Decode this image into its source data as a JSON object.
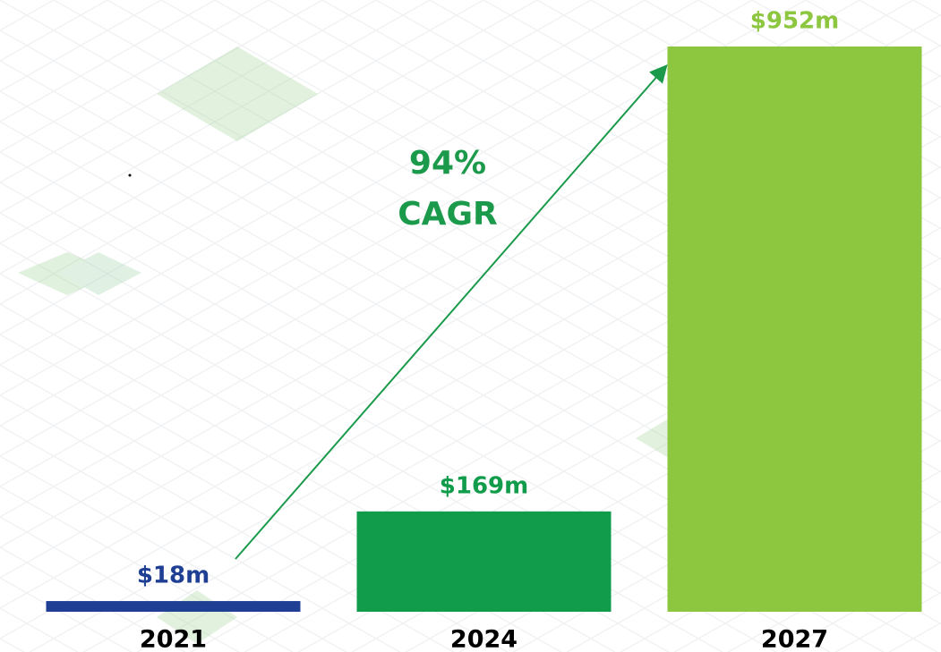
{
  "chart_data": {
    "type": "bar",
    "categories": [
      "2021",
      "2024",
      "2027"
    ],
    "values": [
      18,
      169,
      952
    ],
    "value_labels": [
      "$18m",
      "$169m",
      "$952m"
    ],
    "colors": [
      "#1f3f94",
      "#109c4a",
      "#8dc63f"
    ],
    "annotation": [
      "94%",
      "CAGR"
    ],
    "annotation_color": "#1a9a4a"
  }
}
